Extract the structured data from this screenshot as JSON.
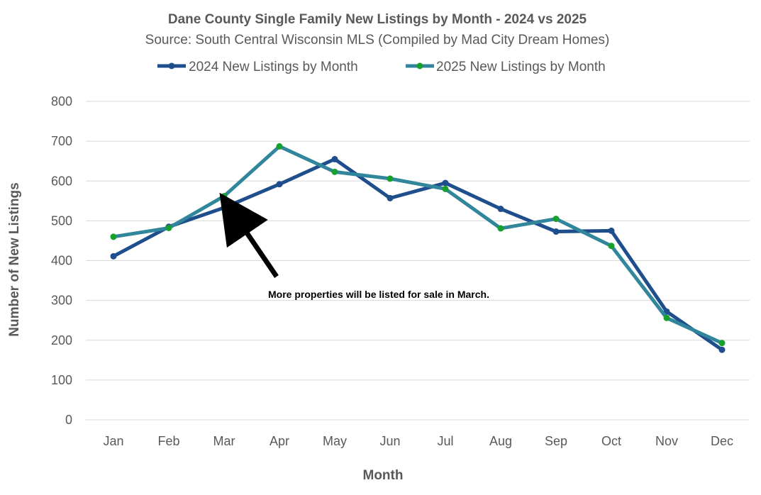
{
  "chart_data": {
    "type": "line",
    "title": "Dane County Single Family New Listings by Month - 2024 vs 2025",
    "subtitle": "Source: South Central Wisconsin MLS (Compiled by Mad City Dream Homes)",
    "xlabel": "Month",
    "ylabel": "Number of New Listings",
    "categories": [
      "Jan",
      "Feb",
      "Mar",
      "Apr",
      "May",
      "Jun",
      "Jul",
      "Aug",
      "Sep",
      "Oct",
      "Nov",
      "Dec"
    ],
    "ylim": [
      0,
      800
    ],
    "yticks": [
      "0",
      "100",
      "200",
      "300",
      "400",
      "500",
      "600",
      "700",
      "800"
    ],
    "grid": true,
    "legend_position": "top-center",
    "series": [
      {
        "name": "2024 New Listings by Month",
        "color": "#1f4e8c",
        "marker_color": "#1f4e8c",
        "values": [
          411,
          485,
          533,
          592,
          655,
          557,
          595,
          530,
          473,
          475,
          272,
          176
        ]
      },
      {
        "name": "2025 New Listings by Month",
        "color": "#31869b",
        "marker_color": "#17a02e",
        "values": [
          460,
          482,
          562,
          687,
          623,
          606,
          580,
          481,
          505,
          437,
          256,
          193
        ]
      }
    ],
    "annotation": {
      "text": "More properties will be listed for sale in March.",
      "points_to": "Mar"
    }
  }
}
